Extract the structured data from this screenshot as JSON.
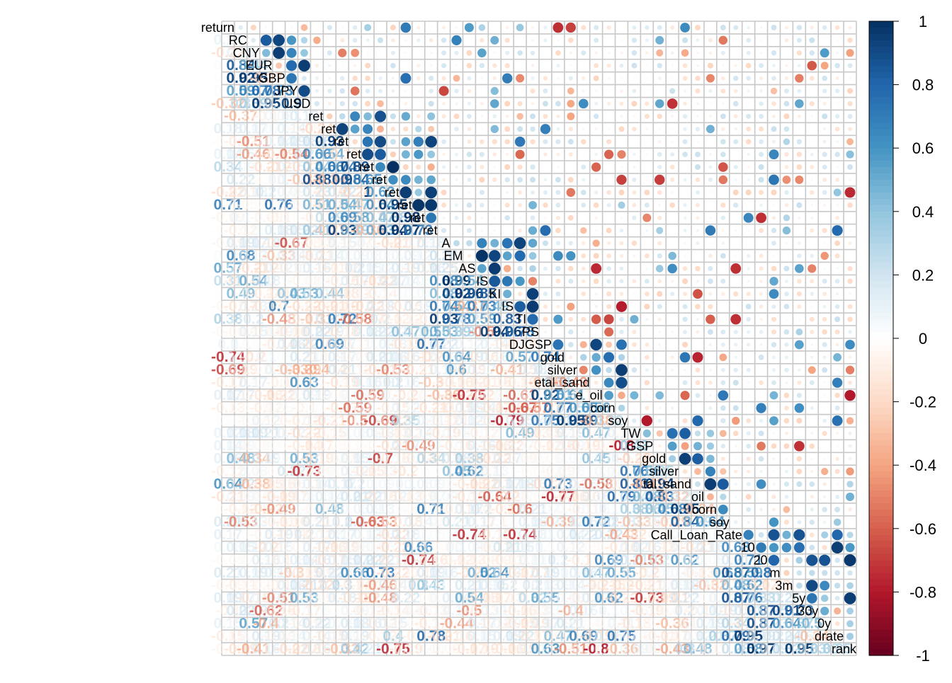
{
  "chart_data": {
    "type": "heatmap",
    "subtype": "correlation-matrix-mixed",
    "upper_method": "circle",
    "lower_method": "number",
    "diagonal_labels": true,
    "grid": true,
    "variables": [
      "return",
      "RC",
      "CNY",
      "EUR",
      "GBP",
      "JPY",
      "USD",
      "ret",
      "ret",
      "ret",
      "ret",
      "ret",
      "ret",
      "ret",
      "ret",
      "ret",
      "ret",
      "A",
      "EM",
      "AS",
      "IS",
      "KI",
      "IS",
      "TI",
      "PS",
      "DJGSP",
      "gold",
      "silver",
      "etal_sand",
      "e_oil",
      "corn",
      "soy",
      "TW",
      "GSP",
      "gold",
      "silver",
      "tal_sand",
      "oil",
      "corn",
      "soy",
      "Call_Loan_Rate",
      "10",
      "20",
      "m",
      "3m",
      "5y",
      "30y",
      "0y",
      "drate",
      "rank"
    ],
    "visible_values": [
      0.2,
      0.59,
      0.76,
      0.62,
      0.94,
      0.79,
      0.47,
      0.75,
      0.7,
      0.51,
      0.4,
      0.39,
      0.53
    ],
    "color_scale": {
      "min": -1,
      "max": 1,
      "ticks": [
        1,
        0.8,
        0.6,
        0.4,
        0.2,
        0,
        -0.2,
        -0.4,
        -0.6,
        -0.8,
        -1
      ],
      "colors": [
        "#67001F",
        "#B2182B",
        "#D6604D",
        "#F4A582",
        "#FDDBC7",
        "#FFFFFF",
        "#D1E5F0",
        "#92C5DE",
        "#4393C3",
        "#2166AC",
        "#053061"
      ]
    },
    "legend_position": "right"
  }
}
